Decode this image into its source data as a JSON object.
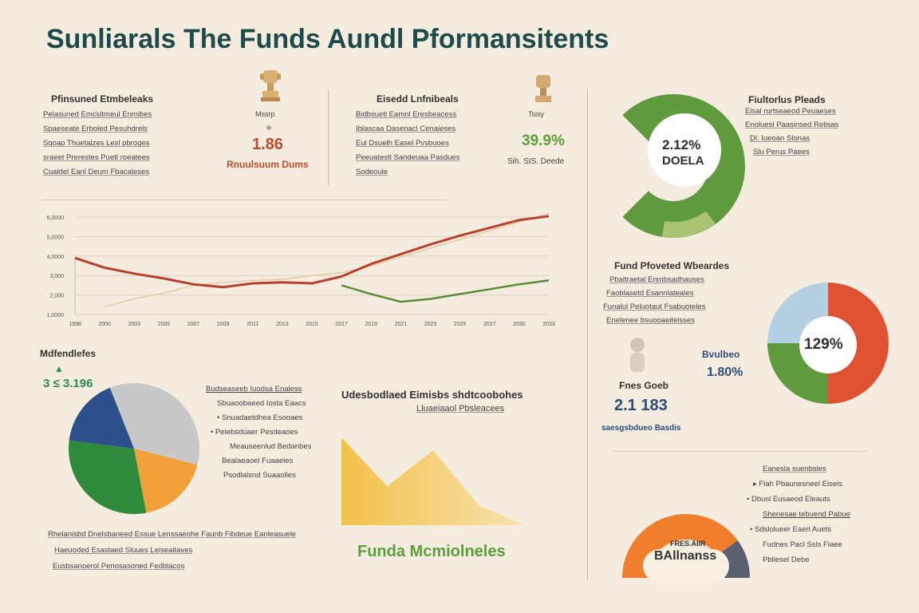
{
  "title": "Sunliarals The Funds Aundl Pformansitents",
  "panel1": {
    "heading": "Pfinsuned Etmbeleaks",
    "lines": [
      "Pelasuned Emcsitmeul Enmibes",
      "Spaeseate Erboled Pesuhdrels",
      "Sqoap Thuetalzes Lesl pbroges",
      "sraeet Prerestes Puetl roeatees",
      "Cualdel Eanl Deum Fbacaleses"
    ],
    "icon_label": "Mssrp",
    "stat_value": "1.86",
    "stat_label": "Rnuulsuum Dums"
  },
  "panel2": {
    "heading": "Eisedd Lnfnibeals",
    "lines": [
      "Bidbsuetl Eamnl Eresbeacess",
      "Iblascaa Dasenacl Cenaieses",
      "Eul Dsuelh Easel Pvsbuoes",
      "Peeuatestl Sandeuaa Pasdues",
      "Sodeoule"
    ],
    "icon_label": "Tsisy",
    "stat_value": "39.9%",
    "stat_label": "Sih. SIS. Deede"
  },
  "line_chart": {
    "y_ticks": [
      "6,0000",
      "5,0000",
      "4,0000",
      "3,000",
      "2,000",
      "1,0000"
    ],
    "x_ticks": [
      "1998",
      "2000",
      "2003",
      "2005",
      "2007",
      "2009",
      "2011",
      "2013",
      "2015",
      "2017",
      "2019",
      "2021",
      "2023",
      "2025",
      "2027",
      "2030",
      "2033"
    ]
  },
  "donut_top": {
    "value": "2.12%",
    "label": "DOELA",
    "heading": "Fiultorlus Pleads",
    "lines": [
      "Eisal rurtseaeod Peuaeses",
      "Enoluesl Paasinsed Relisas",
      "Dl. Iueoan Slonas",
      "Slu Perus Paees"
    ]
  },
  "right_mid": {
    "heading": "Fund Pfoveted Wbeardes",
    "lines": [
      "Pbaltraetal Enmbsadhauses",
      "Faoblasetd Esannlateales",
      "Funalul Peluotaut Fsabuoteles",
      "Enelenee bsuooaeiteisses"
    ],
    "donut_value": "129%",
    "kpi_label": "Bvulbeo",
    "kpi_value": "1.80%",
    "stat_label": "Fnes Goeb",
    "stat_value": "2.1 183",
    "stat_sub": "saesgsbdueo Basdis"
  },
  "pie_left": {
    "heading": "Mdfendlefes",
    "sub_value": "3 ≤ 3.196",
    "legend": [
      "Budseaseeb Iuodsa Enaless",
      "Sbuaoobaeed Iosta Eaacs",
      "Snuadaetdhea Esooaes",
      "Peiebsduaer Pesdeaoes",
      "Meauseenlud Bedanbes",
      "Bealaeaoel Fuaaeles",
      "Psodlalsnd Suaaolles"
    ],
    "caption_lines": [
      "Rhelanisbd Dnelsbaneed Essue Lenssaeohe Faunb Fibdeue Eanleasuele",
      "Haeuoded Esastaed Sluues Leiseaitaves",
      "Eusbsanoerol Penosasoned Fedblacos"
    ]
  },
  "area_chart": {
    "heading": "Udesbodlaed Eimisbs shdtcoobohes",
    "subheading": "Lluaeiaaol Pbsleacees",
    "caption": "Funda Mcmiolneles"
  },
  "bottom_right": {
    "heading": "Eanesla suenbsles",
    "items": [
      "Flah Pbaunesneel Eiseis",
      "Dbusl Eusaeod Eleauts",
      "Shenesae tebuend Pabue",
      "Sdslolueer Eaerl Auets",
      "Fudnes Pacl Ssls Fiaee",
      "Pbliesel Debe"
    ],
    "gauge_label_top": "FRES.AIIR",
    "gauge_label": "BAllnanss"
  },
  "colors": {
    "background": "#f4ecde",
    "title": "#1f4a4c",
    "red_line": "#b8402e",
    "green_line": "#5a8a3a",
    "tan_line": "#e0c49a",
    "yellow_area": "#f3c14a",
    "pie_gray": "#c8c8c8",
    "pie_orange": "#f2a03a",
    "pie_blue": "#2d4f8c",
    "pie_green": "#2f8a3c",
    "donut_green": "#5f9a3e",
    "donut_lightgreen": "#a9c274",
    "donut_red": "#de5231",
    "donut_blue": "#b5cfe3",
    "orange_gauge": "#ef7f2c",
    "gauge_dark": "#5a6070",
    "green_text": "#5e9e3c",
    "red_text": "#c04a2f",
    "blue_text": "#2e4d7a"
  },
  "chart_data": [
    {
      "type": "line",
      "x": [
        "1998",
        "2000",
        "2003",
        "2005",
        "2007",
        "2009",
        "2011",
        "2013",
        "2015",
        "2017",
        "2019",
        "2021",
        "2023",
        "2025",
        "2027",
        "2030",
        "2033"
      ],
      "series": [
        {
          "values": [
            3.9,
            3.4,
            3.1,
            2.85,
            2.55,
            2.4,
            2.6,
            2.65,
            2.6,
            2.95,
            3.6,
            4.1,
            4.6,
            5.05,
            5.45,
            5.85,
            6.05
          ]
        },
        {
          "values": [
            null,
            null,
            null,
            null,
            null,
            null,
            null,
            null,
            null,
            2.5,
            2.05,
            1.65,
            1.8,
            2.05,
            2.3,
            2.55,
            2.75
          ]
        },
        {
          "values": [
            null,
            1.4,
            1.8,
            2.1,
            2.5,
            2.65,
            2.75,
            2.8,
            3.0,
            3.15,
            3.5,
            3.95,
            4.4,
            4.85,
            5.3,
            5.75,
            6.2
          ]
        }
      ]
    },
    {
      "type": "pie",
      "values": [
        35,
        18,
        30,
        17
      ]
    },
    {
      "type": "area",
      "values": [
        90,
        40,
        77,
        20,
        0
      ]
    },
    {
      "type": "pie",
      "values": [
        75,
        25
      ],
      "label": "2.12%"
    },
    {
      "type": "pie",
      "values": [
        50,
        25,
        25
      ],
      "label": "129%"
    },
    {
      "type": "pie",
      "values": [
        80,
        20
      ]
    }
  ]
}
